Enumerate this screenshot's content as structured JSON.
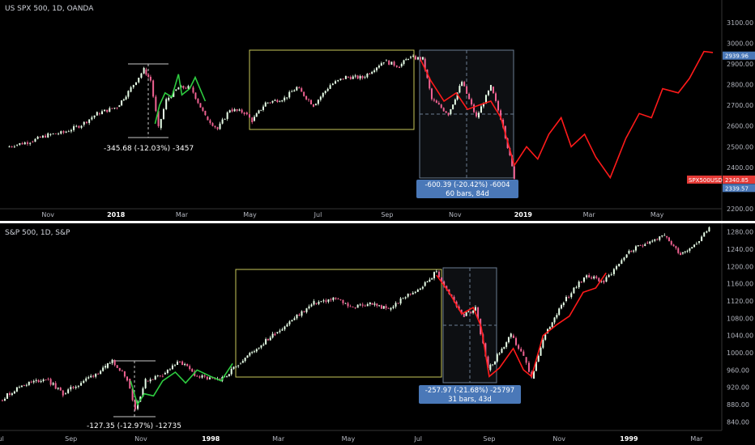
{
  "colors": {
    "background": "#000000",
    "separator": "#ffffff",
    "bull_candle": "#e8ffe8",
    "bear_candle": "#f06292",
    "green_overlay": "#2ecc40",
    "red_overlay": "#ff1a1a",
    "zone_box": "#c8c85a",
    "measure_box": "#6a7c92",
    "label_blue": "#4a78b8",
    "label_red": "#e53935"
  },
  "chart_data": [
    {
      "type": "line",
      "title": "US SPX 500, 1D, OANDA",
      "x_tick_labels": [
        "Nov",
        "2018",
        "Mar",
        "May",
        "Jul",
        "Sep",
        "Nov",
        "2019",
        "Mar",
        "May"
      ],
      "x_tick_bold": [
        "2018",
        "2019"
      ],
      "y_tick_labels": [
        "3100.00",
        "3000.00",
        "2900.00",
        "2800.00",
        "2700.00",
        "2600.00",
        "2500.00",
        "2400.00",
        "2300.00",
        "2200.00"
      ],
      "ylim": [
        2200,
        3150
      ],
      "candles_close": [
        {
          "x": "2017-09-25",
          "y": 2497
        },
        {
          "x": "2017-10-02",
          "y": 2508
        },
        {
          "x": "2017-10-16",
          "y": 2525
        },
        {
          "x": "2017-11-01",
          "y": 2557
        },
        {
          "x": "2017-11-15",
          "y": 2568
        },
        {
          "x": "2017-12-01",
          "y": 2606
        },
        {
          "x": "2017-12-15",
          "y": 2660
        },
        {
          "x": "2018-01-02",
          "y": 2692
        },
        {
          "x": "2018-01-12",
          "y": 2765
        },
        {
          "x": "2018-01-26",
          "y": 2873
        },
        {
          "x": "2018-02-01",
          "y": 2820
        },
        {
          "x": "2018-02-08",
          "y": 2590
        },
        {
          "x": "2018-02-15",
          "y": 2725
        },
        {
          "x": "2018-02-26",
          "y": 2785
        },
        {
          "x": "2018-03-09",
          "y": 2786
        },
        {
          "x": "2018-03-22",
          "y": 2645
        },
        {
          "x": "2018-04-02",
          "y": 2585
        },
        {
          "x": "2018-04-13",
          "y": 2680
        },
        {
          "x": "2018-04-26",
          "y": 2665
        },
        {
          "x": "2018-05-03",
          "y": 2625
        },
        {
          "x": "2018-05-15",
          "y": 2711
        },
        {
          "x": "2018-06-01",
          "y": 2734
        },
        {
          "x": "2018-06-12",
          "y": 2786
        },
        {
          "x": "2018-06-27",
          "y": 2700
        },
        {
          "x": "2018-07-12",
          "y": 2798
        },
        {
          "x": "2018-07-26",
          "y": 2837
        },
        {
          "x": "2018-08-10",
          "y": 2833
        },
        {
          "x": "2018-08-29",
          "y": 2914
        },
        {
          "x": "2018-09-12",
          "y": 2888
        },
        {
          "x": "2018-09-20",
          "y": 2930
        },
        {
          "x": "2018-10-03",
          "y": 2925
        },
        {
          "x": "2018-10-11",
          "y": 2728
        },
        {
          "x": "2018-10-26",
          "y": 2658
        },
        {
          "x": "2018-11-07",
          "y": 2813
        },
        {
          "x": "2018-11-20",
          "y": 2641
        },
        {
          "x": "2018-12-03",
          "y": 2790
        },
        {
          "x": "2018-12-14",
          "y": 2600
        },
        {
          "x": "2018-12-24",
          "y": 2351
        }
      ],
      "green_overlay": [
        {
          "x": "2018-02-05",
          "y": 2610
        },
        {
          "x": "2018-02-09",
          "y": 2700
        },
        {
          "x": "2018-02-14",
          "y": 2760
        },
        {
          "x": "2018-02-20",
          "y": 2740
        },
        {
          "x": "2018-02-26",
          "y": 2850
        },
        {
          "x": "2018-03-01",
          "y": 2750
        },
        {
          "x": "2018-03-08",
          "y": 2780
        },
        {
          "x": "2018-03-13",
          "y": 2835
        },
        {
          "x": "2018-03-22",
          "y": 2720
        }
      ],
      "red_overlay": [
        {
          "x": "2018-10-01",
          "y": 2920
        },
        {
          "x": "2018-10-10",
          "y": 2820
        },
        {
          "x": "2018-10-22",
          "y": 2720
        },
        {
          "x": "2018-11-02",
          "y": 2760
        },
        {
          "x": "2018-11-12",
          "y": 2680
        },
        {
          "x": "2018-11-22",
          "y": 2700
        },
        {
          "x": "2018-12-03",
          "y": 2720
        },
        {
          "x": "2018-12-12",
          "y": 2640
        },
        {
          "x": "2018-12-24",
          "y": 2410
        },
        {
          "x": "2019-01-04",
          "y": 2500
        },
        {
          "x": "2019-01-14",
          "y": 2440
        },
        {
          "x": "2019-01-24",
          "y": 2560
        },
        {
          "x": "2019-02-04",
          "y": 2640
        },
        {
          "x": "2019-02-13",
          "y": 2500
        },
        {
          "x": "2019-02-25",
          "y": 2560
        },
        {
          "x": "2019-03-07",
          "y": 2450
        },
        {
          "x": "2019-03-20",
          "y": 2350
        },
        {
          "x": "2019-04-03",
          "y": 2540
        },
        {
          "x": "2019-04-15",
          "y": 2660
        },
        {
          "x": "2019-04-26",
          "y": 2640
        },
        {
          "x": "2019-05-06",
          "y": 2780
        },
        {
          "x": "2019-05-20",
          "y": 2760
        },
        {
          "x": "2019-05-30",
          "y": 2830
        },
        {
          "x": "2019-06-12",
          "y": 2960
        },
        {
          "x": "2019-06-20",
          "y": 2955
        }
      ],
      "price_labels": [
        {
          "text": "2939.96",
          "value": 2939.96,
          "color": "#4a78b8"
        },
        {
          "text": "SPX500USD",
          "value": 2340.85,
          "color": "#e53935"
        },
        {
          "text": "2340.85",
          "value": 2340.85,
          "color": "#e53935"
        },
        {
          "text": "2339.57",
          "value": 2339.57,
          "color": "#4a78b8"
        }
      ],
      "annotations": [
        {
          "text": "-345.68 (-12.03%) -3457"
        },
        {
          "text": "-600.39 (-20.42%) -6004",
          "text2": "60 bars, 84d"
        }
      ]
    },
    {
      "type": "line",
      "title": "S&P 500, 1D, S&P",
      "x_tick_labels": [
        "Jul",
        "Sep",
        "Nov",
        "1998",
        "Mar",
        "May",
        "Jul",
        "Sep",
        "Nov",
        "1999",
        "Mar"
      ],
      "x_tick_bold": [
        "1998",
        "1999"
      ],
      "y_tick_labels": [
        "1280.00",
        "1240.00",
        "1200.00",
        "1160.00",
        "1120.00",
        "1080.00",
        "1040.00",
        "1000.00",
        "960.00",
        "920.00",
        "880.00",
        "840.00"
      ],
      "ylim": [
        820,
        1300
      ],
      "candles_close": [
        {
          "x": "1997-07-01",
          "y": 890
        },
        {
          "x": "1997-07-20",
          "y": 925
        },
        {
          "x": "1997-08-10",
          "y": 940
        },
        {
          "x": "1997-08-25",
          "y": 905
        },
        {
          "x": "1997-09-12",
          "y": 935
        },
        {
          "x": "1997-10-01",
          "y": 965
        },
        {
          "x": "1997-10-07",
          "y": 983
        },
        {
          "x": "1997-10-20",
          "y": 940
        },
        {
          "x": "1997-10-27",
          "y": 870
        },
        {
          "x": "1997-11-05",
          "y": 935
        },
        {
          "x": "1997-11-20",
          "y": 950
        },
        {
          "x": "1997-12-05",
          "y": 980
        },
        {
          "x": "1997-12-20",
          "y": 945
        },
        {
          "x": "1998-01-09",
          "y": 935
        },
        {
          "x": "1998-01-25",
          "y": 975
        },
        {
          "x": "1998-02-10",
          "y": 1010
        },
        {
          "x": "1998-02-26",
          "y": 1045
        },
        {
          "x": "1998-03-15",
          "y": 1080
        },
        {
          "x": "1998-04-01",
          "y": 1115
        },
        {
          "x": "1998-04-20",
          "y": 1125
        },
        {
          "x": "1998-05-05",
          "y": 1105
        },
        {
          "x": "1998-05-20",
          "y": 1115
        },
        {
          "x": "1998-06-05",
          "y": 1100
        },
        {
          "x": "1998-06-20",
          "y": 1130
        },
        {
          "x": "1998-07-05",
          "y": 1155
        },
        {
          "x": "1998-07-17",
          "y": 1188
        },
        {
          "x": "1998-07-28",
          "y": 1135
        },
        {
          "x": "1998-08-10",
          "y": 1085
        },
        {
          "x": "1998-08-20",
          "y": 1105
        },
        {
          "x": "1998-08-31",
          "y": 960
        },
        {
          "x": "1998-09-10",
          "y": 1000
        },
        {
          "x": "1998-09-20",
          "y": 1040
        },
        {
          "x": "1998-10-01",
          "y": 990
        },
        {
          "x": "1998-10-08",
          "y": 940
        },
        {
          "x": "1998-10-20",
          "y": 1045
        },
        {
          "x": "1998-11-05",
          "y": 1120
        },
        {
          "x": "1998-11-25",
          "y": 1180
        },
        {
          "x": "1998-12-10",
          "y": 1165
        },
        {
          "x": "1998-12-30",
          "y": 1230
        },
        {
          "x": "1999-01-15",
          "y": 1255
        },
        {
          "x": "1999-02-01",
          "y": 1270
        },
        {
          "x": "1999-02-15",
          "y": 1230
        },
        {
          "x": "1999-03-01",
          "y": 1255
        },
        {
          "x": "1999-03-12",
          "y": 1290
        }
      ],
      "green_overlay": [
        {
          "x": "1997-10-23",
          "y": 935
        },
        {
          "x": "1997-10-29",
          "y": 880
        },
        {
          "x": "1997-11-04",
          "y": 905
        },
        {
          "x": "1997-11-12",
          "y": 900
        },
        {
          "x": "1997-11-20",
          "y": 935
        },
        {
          "x": "1997-12-01",
          "y": 955
        },
        {
          "x": "1997-12-10",
          "y": 930
        },
        {
          "x": "1997-12-20",
          "y": 960
        },
        {
          "x": "1998-01-01",
          "y": 945
        },
        {
          "x": "1998-01-10",
          "y": 935
        },
        {
          "x": "1998-01-20",
          "y": 975
        }
      ],
      "red_overlay": [
        {
          "x": "1998-07-17",
          "y": 1180
        },
        {
          "x": "1998-07-28",
          "y": 1140
        },
        {
          "x": "1998-08-08",
          "y": 1090
        },
        {
          "x": "1998-08-18",
          "y": 1105
        },
        {
          "x": "1998-08-25",
          "y": 1060
        },
        {
          "x": "1998-09-01",
          "y": 945
        },
        {
          "x": "1998-09-10",
          "y": 965
        },
        {
          "x": "1998-09-22",
          "y": 1010
        },
        {
          "x": "1998-10-01",
          "y": 960
        },
        {
          "x": "1998-10-08",
          "y": 945
        },
        {
          "x": "1998-10-18",
          "y": 1040
        },
        {
          "x": "1998-10-30",
          "y": 1065
        },
        {
          "x": "1998-11-10",
          "y": 1085
        },
        {
          "x": "1998-11-22",
          "y": 1140
        },
        {
          "x": "1998-12-03",
          "y": 1150
        },
        {
          "x": "1998-12-12",
          "y": 1185
        }
      ],
      "annotations": [
        {
          "text": "-127.35 (-12.97%) -12735"
        },
        {
          "text": "-257.97 (-21.68%) -25797",
          "text2": "31 bars, 43d"
        }
      ]
    }
  ]
}
